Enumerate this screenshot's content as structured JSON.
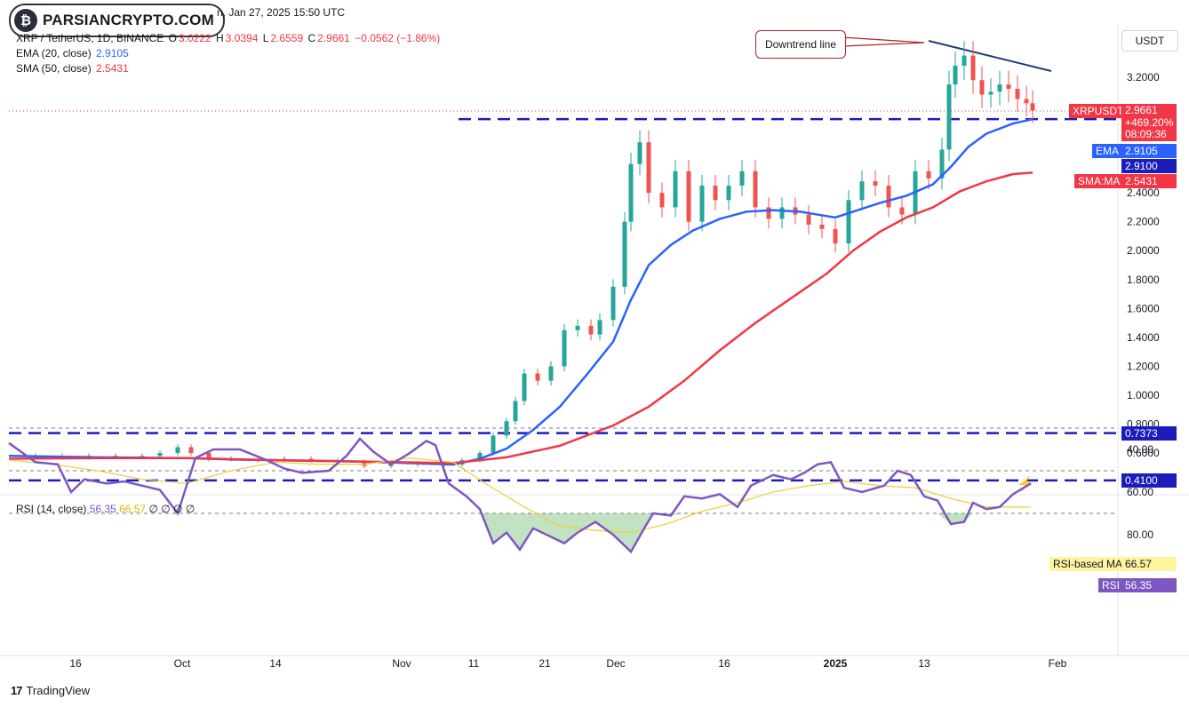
{
  "header": {
    "logo_text": "PARSIANCRYPTO.COM",
    "date_line": "n, Jan 27, 2025 15:50 UTC",
    "symbol_line": "XRP / TetherUS, 1D, BINANCE",
    "ohlc": {
      "o_label": "O",
      "o": "3.0222",
      "h_label": "H",
      "h": "3.0394",
      "l_label": "L",
      "l": "2.6559",
      "c_label": "C",
      "c": "2.9661",
      "change": "−0.0562 (−1.86%)"
    },
    "ema_label": "EMA (20, close)",
    "ema_value": "2.9105",
    "sma_label": "SMA (50, close)",
    "sma_value": "2.5431",
    "currency_button": "USDT"
  },
  "annotation": {
    "label": "Downtrend line"
  },
  "price_tags": {
    "symbol": "XRPUSDT",
    "price": "2.9661",
    "pct": "+469.20%",
    "countdown": "08:09:36",
    "ema_name": "EMA",
    "ema_value": "2.9105",
    "level1": "2.9100",
    "sma_name": "SMA:MA",
    "sma_value": "2.5431",
    "level2": "0.7373",
    "level3": "0.4100"
  },
  "rsi": {
    "label": "RSI (14, close)",
    "value": "56.35",
    "ma_value": "66.57",
    "extras": "∅ ∅ ∅ ∅",
    "ma_tag_name": "RSI-based MA",
    "ma_tag_value": "66.57",
    "tag_name": "RSI",
    "tag_value": "56.35"
  },
  "footer": {
    "brand": "TradingView",
    "brand_icon": "17"
  },
  "colors": {
    "up": "#26a69a",
    "down": "#ef5350",
    "ema": "#2962ff",
    "sma": "#f23645",
    "rsi": "#7e57c2",
    "rsi_ma": "#f0d040",
    "level": "#1c1cbb"
  },
  "chart_data": [
    {
      "type": "line",
      "title": "XRP / TetherUS, 1D, BINANCE",
      "y_axis_ticks": [
        "0.6000",
        "0.8000",
        "1.0000",
        "1.2000",
        "1.4000",
        "1.6000",
        "1.8000",
        "2.0000",
        "2.2000",
        "2.4000",
        "3.2000"
      ],
      "x_axis_ticks": [
        "16",
        "Oct",
        "14",
        "Nov",
        "11",
        "21",
        "Dec",
        "16",
        "2025",
        "13",
        "Feb"
      ],
      "ylim": [
        0.38,
        3.45
      ],
      "horizontal_levels": [
        2.91,
        0.7373,
        0.41
      ],
      "downtrend_line": {
        "from": [
          0.0,
          3.43
        ],
        "to": [
          1.0,
          3.25
        ]
      },
      "series": [
        {
          "name": "EMA (20, close)",
          "points": [
            [
              0,
              0.58
            ],
            [
              100,
              0.57
            ],
            [
              200,
              0.565
            ],
            [
              250,
              0.555
            ],
            [
              300,
              0.55
            ],
            [
              350,
              0.545
            ],
            [
              400,
              0.54
            ],
            [
              450,
              0.53
            ],
            [
              500,
              0.52
            ],
            [
              530,
              0.56
            ],
            [
              560,
              0.63
            ],
            [
              590,
              0.76
            ],
            [
              620,
              0.92
            ],
            [
              650,
              1.14
            ],
            [
              680,
              1.37
            ],
            [
              700,
              1.66
            ],
            [
              720,
              1.9
            ],
            [
              745,
              2.04
            ],
            [
              770,
              2.14
            ],
            [
              800,
              2.22
            ],
            [
              830,
              2.27
            ],
            [
              860,
              2.28
            ],
            [
              890,
              2.27
            ],
            [
              910,
              2.25
            ],
            [
              930,
              2.23
            ],
            [
              950,
              2.27
            ],
            [
              980,
              2.33
            ],
            [
              1010,
              2.38
            ],
            [
              1040,
              2.46
            ],
            [
              1060,
              2.58
            ],
            [
              1080,
              2.72
            ],
            [
              1100,
              2.81
            ],
            [
              1130,
              2.88
            ],
            [
              1152,
              2.91
            ]
          ]
        },
        {
          "name": "SMA (50, close)",
          "points": [
            [
              0,
              0.56
            ],
            [
              100,
              0.565
            ],
            [
              200,
              0.565
            ],
            [
              300,
              0.55
            ],
            [
              400,
              0.54
            ],
            [
              500,
              0.53
            ],
            [
              560,
              0.57
            ],
            [
              620,
              0.65
            ],
            [
              680,
              0.79
            ],
            [
              720,
              0.92
            ],
            [
              760,
              1.1
            ],
            [
              800,
              1.31
            ],
            [
              840,
              1.5
            ],
            [
              880,
              1.67
            ],
            [
              920,
              1.84
            ],
            [
              950,
              2.0
            ],
            [
              980,
              2.13
            ],
            [
              1010,
              2.23
            ],
            [
              1040,
              2.3
            ],
            [
              1070,
              2.41
            ],
            [
              1100,
              2.48
            ],
            [
              1130,
              2.53
            ],
            [
              1152,
              2.54
            ]
          ]
        }
      ],
      "candles_close": [
        [
          0,
          0.57
        ],
        [
          30,
          0.58
        ],
        [
          60,
          0.57
        ],
        [
          90,
          0.58
        ],
        [
          120,
          0.58
        ],
        [
          150,
          0.58
        ],
        [
          170,
          0.6
        ],
        [
          190,
          0.64
        ],
        [
          205,
          0.6
        ],
        [
          225,
          0.56
        ],
        [
          250,
          0.56
        ],
        [
          280,
          0.55
        ],
        [
          310,
          0.56
        ],
        [
          340,
          0.55
        ],
        [
          370,
          0.54
        ],
        [
          400,
          0.51
        ],
        [
          430,
          0.53
        ],
        [
          460,
          0.52
        ],
        [
          490,
          0.52
        ],
        [
          510,
          0.55
        ],
        [
          530,
          0.6
        ],
        [
          545,
          0.72
        ],
        [
          560,
          0.82
        ],
        [
          570,
          0.96
        ],
        [
          580,
          1.15
        ],
        [
          595,
          1.1
        ],
        [
          610,
          1.2
        ],
        [
          625,
          1.45
        ],
        [
          640,
          1.48
        ],
        [
          655,
          1.42
        ],
        [
          665,
          1.52
        ],
        [
          680,
          1.75
        ],
        [
          693,
          2.2
        ],
        [
          700,
          2.6
        ],
        [
          710,
          2.75
        ],
        [
          720,
          2.4
        ],
        [
          735,
          2.3
        ],
        [
          750,
          2.55
        ],
        [
          765,
          2.2
        ],
        [
          780,
          2.45
        ],
        [
          795,
          2.35
        ],
        [
          810,
          2.45
        ],
        [
          825,
          2.55
        ],
        [
          840,
          2.3
        ],
        [
          855,
          2.22
        ],
        [
          870,
          2.3
        ],
        [
          885,
          2.25
        ],
        [
          900,
          2.18
        ],
        [
          915,
          2.15
        ],
        [
          930,
          2.05
        ],
        [
          945,
          2.35
        ],
        [
          960,
          2.48
        ],
        [
          975,
          2.45
        ],
        [
          990,
          2.3
        ],
        [
          1005,
          2.25
        ],
        [
          1020,
          2.55
        ],
        [
          1035,
          2.5
        ],
        [
          1050,
          2.7
        ],
        [
          1058,
          3.15
        ],
        [
          1065,
          3.28
        ],
        [
          1075,
          3.35
        ],
        [
          1085,
          3.18
        ],
        [
          1095,
          3.08
        ],
        [
          1105,
          3.1
        ],
        [
          1115,
          3.15
        ],
        [
          1125,
          3.12
        ],
        [
          1135,
          3.05
        ],
        [
          1145,
          3.02
        ],
        [
          1152,
          2.97
        ]
      ]
    },
    {
      "type": "line",
      "title": "RSI (14, close)",
      "y_axis_ticks": [
        "80.00",
        "60.00",
        "40.00"
      ],
      "ylim": [
        28,
        92
      ],
      "bands": [
        30,
        50,
        70
      ],
      "series": [
        {
          "name": "RSI",
          "points": [
            [
              0,
              37
            ],
            [
              30,
              46
            ],
            [
              55,
              47
            ],
            [
              70,
              60
            ],
            [
              85,
              54
            ],
            [
              110,
              56
            ],
            [
              130,
              55
            ],
            [
              150,
              57
            ],
            [
              170,
              59
            ],
            [
              190,
              70
            ],
            [
              210,
              44
            ],
            [
              230,
              40
            ],
            [
              260,
              40
            ],
            [
              290,
              45
            ],
            [
              310,
              49
            ],
            [
              330,
              51
            ],
            [
              360,
              50
            ],
            [
              380,
              43
            ],
            [
              395,
              35
            ],
            [
              410,
              41
            ],
            [
              430,
              47
            ],
            [
              450,
              42
            ],
            [
              470,
              36
            ],
            [
              480,
              38
            ],
            [
              495,
              56
            ],
            [
              515,
              62
            ],
            [
              530,
              68
            ],
            [
              545,
              84
            ],
            [
              560,
              79
            ],
            [
              575,
              87
            ],
            [
              590,
              77
            ],
            [
              605,
              80
            ],
            [
              625,
              84
            ],
            [
              640,
              79
            ],
            [
              660,
              74
            ],
            [
              680,
              80
            ],
            [
              700,
              88
            ],
            [
              715,
              77
            ],
            [
              725,
              70
            ],
            [
              745,
              71
            ],
            [
              760,
              62
            ],
            [
              780,
              63
            ],
            [
              800,
              61
            ],
            [
              820,
              67
            ],
            [
              835,
              57
            ],
            [
              860,
              52
            ],
            [
              880,
              54
            ],
            [
              895,
              51
            ],
            [
              910,
              47
            ],
            [
              925,
              46
            ],
            [
              940,
              58
            ],
            [
              960,
              60
            ],
            [
              985,
              57
            ],
            [
              1000,
              50
            ],
            [
              1015,
              52
            ],
            [
              1030,
              62
            ],
            [
              1045,
              64
            ],
            [
              1060,
              75
            ],
            [
              1075,
              74
            ],
            [
              1085,
              65
            ],
            [
              1100,
              68
            ],
            [
              1115,
              67
            ],
            [
              1130,
              61
            ],
            [
              1150,
              56
            ]
          ]
        },
        {
          "name": "RSI-based MA",
          "points": [
            [
              0,
              45
            ],
            [
              50,
              47
            ],
            [
              100,
              50
            ],
            [
              150,
              54
            ],
            [
              200,
              56
            ],
            [
              250,
              50
            ],
            [
              300,
              46
            ],
            [
              350,
              47
            ],
            [
              400,
              47
            ],
            [
              450,
              44
            ],
            [
              500,
              46
            ],
            [
              540,
              57
            ],
            [
              580,
              67
            ],
            [
              620,
              76
            ],
            [
              660,
              78
            ],
            [
              700,
              79
            ],
            [
              740,
              75
            ],
            [
              780,
              69
            ],
            [
              820,
              65
            ],
            [
              860,
              60
            ],
            [
              900,
              57
            ],
            [
              940,
              55
            ],
            [
              980,
              57
            ],
            [
              1020,
              58
            ],
            [
              1060,
              63
            ],
            [
              1100,
              67
            ],
            [
              1150,
              67
            ]
          ]
        }
      ]
    }
  ]
}
